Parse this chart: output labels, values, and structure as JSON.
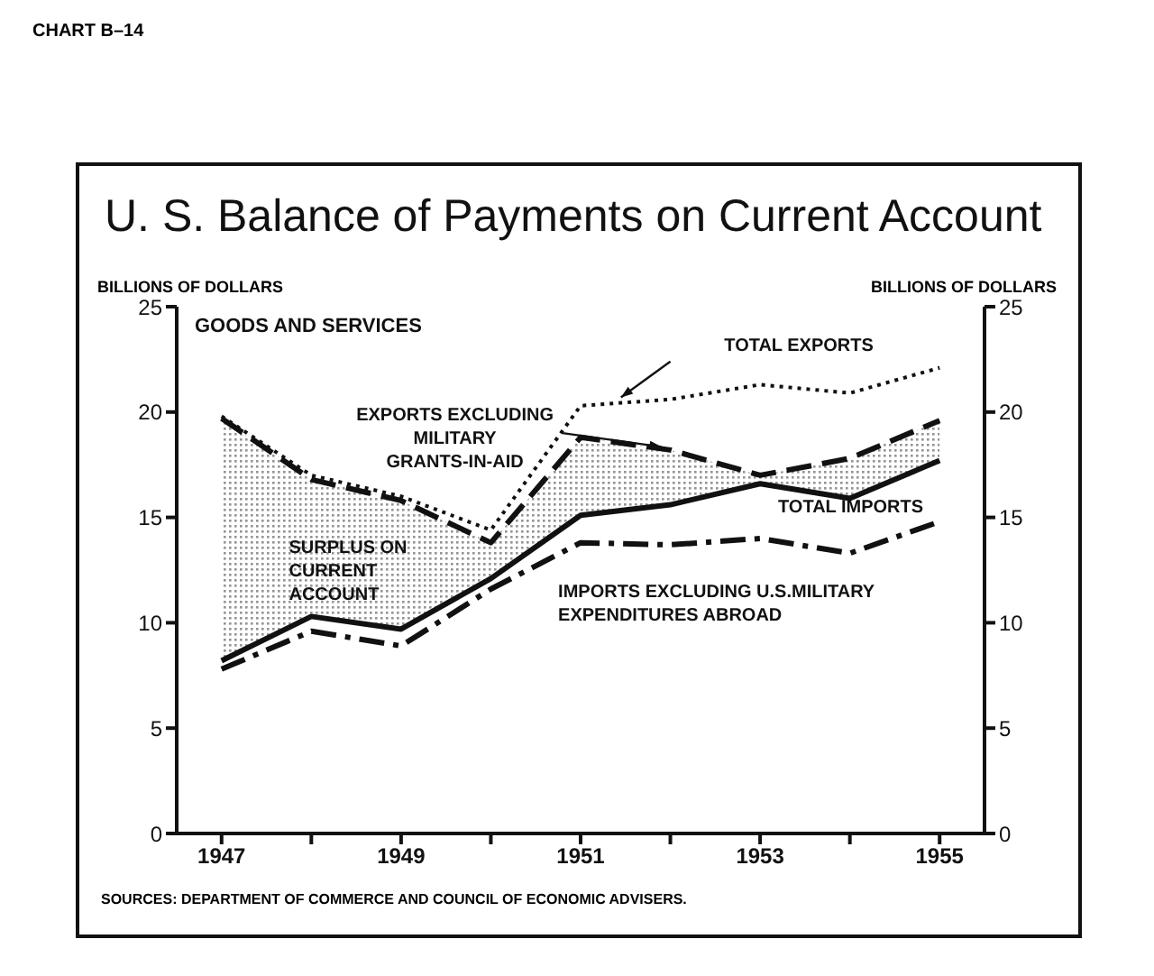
{
  "chart_data": {
    "type": "line",
    "title": "U. S. Balance of Payments on Current Account",
    "ylabel": "BILLIONS OF DOLLARS",
    "y2label": "BILLIONS OF DOLLARS",
    "annotations": [
      "CHART B–14",
      "GOODS AND SERVICES",
      "SOURCES: DEPARTMENT OF COMMERCE AND COUNCIL OF ECONOMIC ADVISERS.",
      "SURPLUS ON CURRENT ACCOUNT"
    ],
    "x": [
      1947,
      1948,
      1949,
      1950,
      1951,
      1952,
      1953,
      1954,
      1955
    ],
    "xlim": [
      1946.5,
      1955.5
    ],
    "xticks": [
      1947,
      {
        "value": 1948,
        "label": null
      },
      1949,
      {
        "value": 1950,
        "label": null
      },
      1951,
      {
        "value": 1952,
        "label": null
      },
      1953,
      {
        "value": 1954,
        "label": null
      },
      1955
    ],
    "ylim": [
      0,
      25
    ],
    "yticks": [
      0,
      5,
      10,
      15,
      20,
      25
    ],
    "y2lim": [
      0,
      25
    ],
    "y2ticks": [
      0,
      5,
      10,
      15,
      20,
      25
    ],
    "series": [
      {
        "name": "TOTAL EXPORTS",
        "color": "#111111",
        "line_style": "dotted",
        "values": [
          19.8,
          17.0,
          16.0,
          14.4,
          20.3,
          20.6,
          21.3,
          20.9,
          22.1
        ]
      },
      {
        "name": "EXPORTS EXCLUDING MILITARY GRANTS-IN-AID",
        "color": "#111111",
        "line_style": "dashed",
        "values": [
          19.7,
          16.8,
          15.8,
          13.8,
          18.8,
          18.2,
          17.0,
          17.8,
          19.6
        ],
        "lower": [
          8.2,
          10.3,
          9.7,
          12.1,
          15.1,
          15.6,
          16.6,
          15.9,
          17.7
        ],
        "upper": [
          19.7,
          16.8,
          15.8,
          13.8,
          18.8,
          18.2,
          17.0,
          17.8,
          19.6
        ]
      },
      {
        "name": "TOTAL IMPORTS",
        "color": "#111111",
        "line_style": "solid",
        "values": [
          8.2,
          10.3,
          9.7,
          12.1,
          15.1,
          15.6,
          16.6,
          15.9,
          17.7
        ]
      },
      {
        "name": "IMPORTS EXCLUDING U.S.MILITARY EXPENDITURES ABROAD",
        "color": "#111111",
        "line_style": "dashdot",
        "values": [
          7.8,
          9.6,
          8.9,
          11.6,
          13.8,
          13.7,
          14.0,
          13.3,
          14.8
        ]
      }
    ],
    "grid": false,
    "legend": false,
    "marker": "none"
  }
}
